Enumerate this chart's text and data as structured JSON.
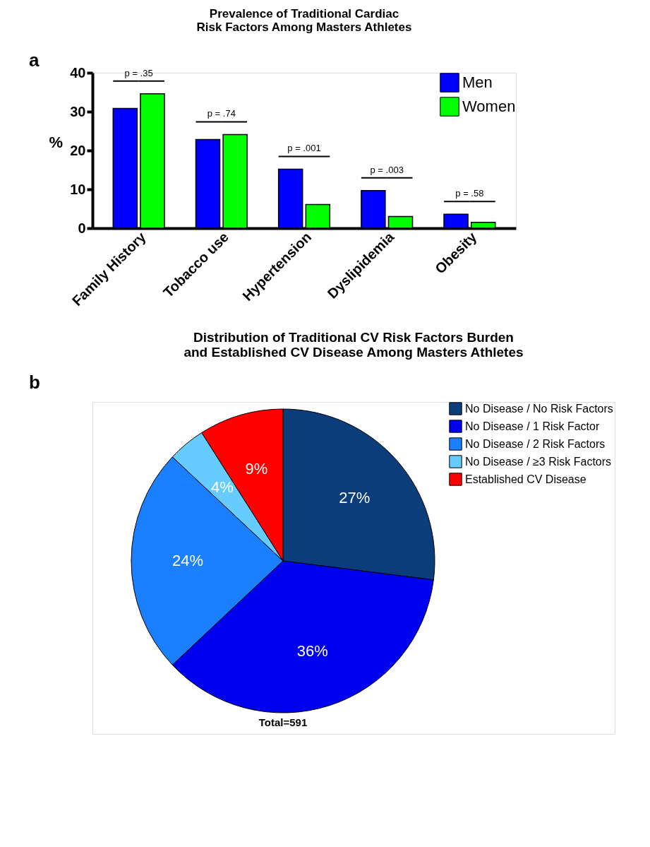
{
  "chart_data": [
    {
      "type": "bar",
      "title": [
        "Prevalence of Traditional Cardiac",
        "Risk Factors Among Masters Athletes"
      ],
      "ylabel": "%",
      "categories": [
        "Family History",
        "Tobacco use",
        "Hypertension",
        "Dyslipidemia",
        "Obesity"
      ],
      "series": [
        {
          "name": "Men",
          "color": "#0000ff",
          "values": [
            30.8,
            22.8,
            15.2,
            9.7,
            3.6
          ]
        },
        {
          "name": "Women",
          "color": "#00ff00",
          "values": [
            34.6,
            24.1,
            6.1,
            3.0,
            1.5
          ]
        }
      ],
      "ylim": [
        0,
        40
      ],
      "yticks": [
        0,
        10,
        20,
        30,
        40
      ],
      "grid": false,
      "legend": "top right",
      "annotations": [
        "a",
        "p = .35",
        "p = .74",
        "p = .001",
        "p = .003",
        "p = .58"
      ]
    },
    {
      "type": "pie",
      "title": [
        "Distribution of Traditional CV Risk Factors Burden",
        "and Established CV Disease Among Masters Athletes"
      ],
      "categories": [
        "No Disease / No Risk Factors",
        "No Disease / 1 Risk Factor",
        "No Disease / 2 Risk Factors",
        "No Disease /  ≥3 Risk Factors",
        "Established CV Disease"
      ],
      "values": [
        27,
        36,
        24,
        4,
        9
      ],
      "colors": [
        "#0a3d7a",
        "#0000f0",
        "#1a80ff",
        "#66ccff",
        "#ff0000"
      ],
      "value_labels": [
        "27%",
        "36%",
        "24%",
        "4%",
        "9%"
      ],
      "legend": "top right",
      "annotations": [
        "b",
        "Total=591"
      ]
    }
  ]
}
